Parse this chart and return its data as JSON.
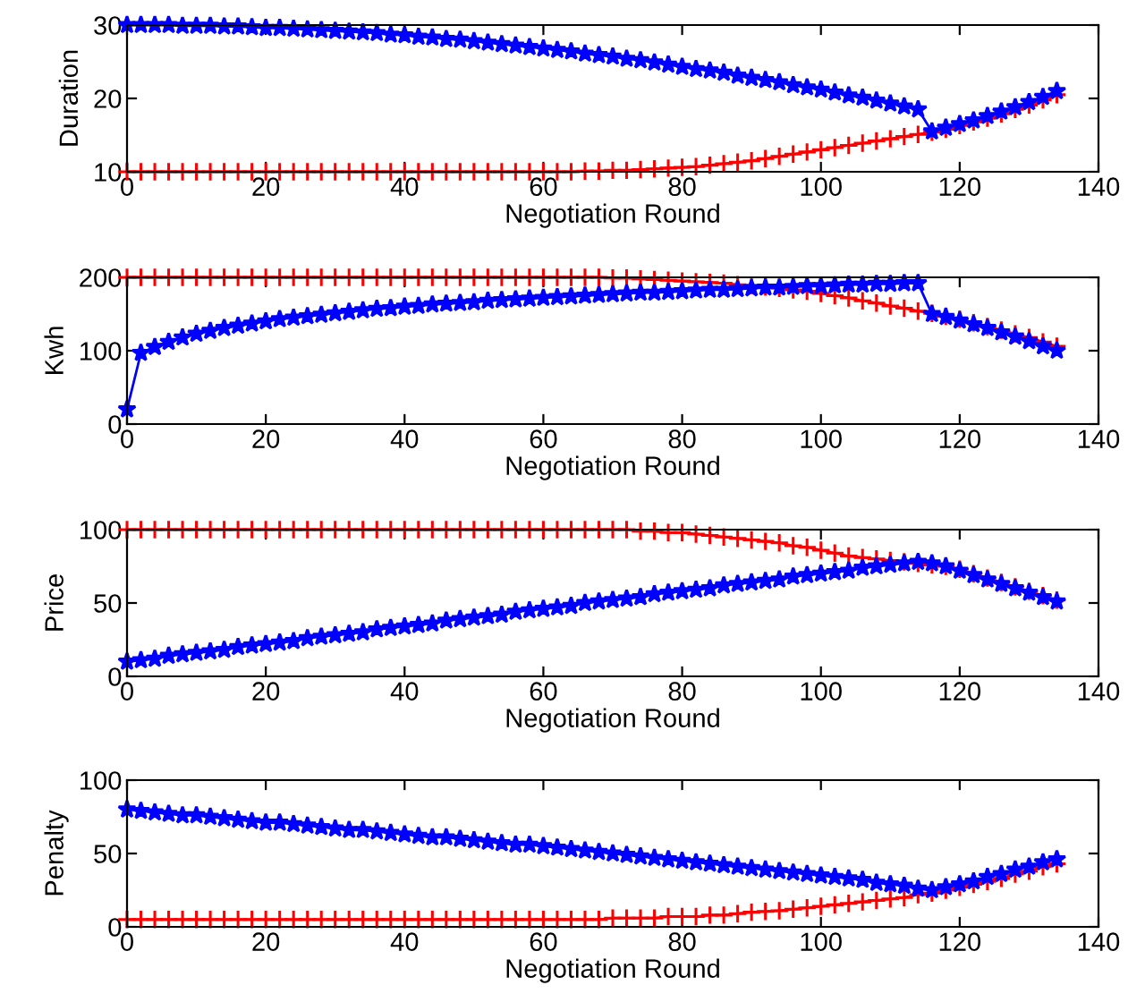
{
  "chart_data": [
    {
      "type": "line",
      "xlabel": "Negotiation Round",
      "ylabel": "Duration",
      "xlim": [
        0,
        140
      ],
      "xticks": [
        0,
        20,
        40,
        60,
        80,
        100,
        120,
        140
      ],
      "ylim": [
        10,
        30
      ],
      "yticks": [
        10,
        20,
        30
      ],
      "grid": false,
      "legend": false,
      "x": [
        0,
        2,
        4,
        6,
        8,
        10,
        12,
        14,
        16,
        18,
        20,
        22,
        24,
        26,
        28,
        30,
        32,
        34,
        36,
        38,
        40,
        42,
        44,
        46,
        48,
        50,
        52,
        54,
        56,
        58,
        60,
        62,
        64,
        66,
        68,
        70,
        72,
        74,
        76,
        78,
        80,
        82,
        84,
        86,
        88,
        90,
        92,
        94,
        96,
        98,
        100,
        102,
        104,
        106,
        108,
        110,
        112,
        114,
        116,
        118,
        120,
        122,
        124,
        126,
        128,
        130,
        132,
        134
      ],
      "series": [
        {
          "color": "#ff0000",
          "marker": "cross",
          "values": [
            10,
            10,
            10,
            10,
            10,
            10,
            10,
            10,
            10,
            10,
            10,
            10,
            10,
            10,
            10,
            10,
            10,
            10,
            10,
            10,
            10,
            10,
            10,
            10,
            10,
            10,
            10,
            10,
            10,
            10,
            10,
            10,
            10,
            10.1,
            10.1,
            10.2,
            10.2,
            10.3,
            10.4,
            10.5,
            10.6,
            10.7,
            10.9,
            11.1,
            11.3,
            11.5,
            11.8,
            12.1,
            12.4,
            12.7,
            13.0,
            13.3,
            13.6,
            13.9,
            14.2,
            14.5,
            14.8,
            15.1,
            15.4,
            15.8,
            16.3,
            16.8,
            17.3,
            17.9,
            18.5,
            19.1,
            19.8,
            20.5
          ]
        },
        {
          "color": "#0000ff",
          "marker": "star",
          "values": [
            30.0,
            30.0,
            30.0,
            30.0,
            29.9,
            29.9,
            29.9,
            29.8,
            29.8,
            29.7,
            29.6,
            29.6,
            29.5,
            29.4,
            29.3,
            29.2,
            29.1,
            29.0,
            28.9,
            28.7,
            28.6,
            28.4,
            28.3,
            28.1,
            28.0,
            27.8,
            27.6,
            27.4,
            27.2,
            27.0,
            26.8,
            26.6,
            26.4,
            26.1,
            25.9,
            25.7,
            25.4,
            25.2,
            24.9,
            24.6,
            24.3,
            24.0,
            23.8,
            23.5,
            23.1,
            22.8,
            22.5,
            22.2,
            21.8,
            21.5,
            21.2,
            20.8,
            20.4,
            20.1,
            19.7,
            19.3,
            18.9,
            18.5,
            15.5,
            16.0,
            16.5,
            17.0,
            17.6,
            18.2,
            18.8,
            19.5,
            20.2,
            21.0
          ]
        }
      ]
    },
    {
      "type": "line",
      "xlabel": "Negotiation Round",
      "ylabel": "Kwh",
      "xlim": [
        0,
        140
      ],
      "xticks": [
        0,
        20,
        40,
        60,
        80,
        100,
        120,
        140
      ],
      "ylim": [
        0,
        200
      ],
      "yticks": [
        0,
        100,
        200
      ],
      "grid": false,
      "legend": false,
      "x": [
        0,
        2,
        4,
        6,
        8,
        10,
        12,
        14,
        16,
        18,
        20,
        22,
        24,
        26,
        28,
        30,
        32,
        34,
        36,
        38,
        40,
        42,
        44,
        46,
        48,
        50,
        52,
        54,
        56,
        58,
        60,
        62,
        64,
        66,
        68,
        70,
        72,
        74,
        76,
        78,
        80,
        82,
        84,
        86,
        88,
        90,
        92,
        94,
        96,
        98,
        100,
        102,
        104,
        106,
        108,
        110,
        112,
        114,
        116,
        118,
        120,
        122,
        124,
        126,
        128,
        130,
        132,
        134
      ],
      "series": [
        {
          "color": "#ff0000",
          "marker": "cross",
          "values": [
            200,
            200,
            200,
            200,
            200,
            200,
            200,
            200,
            200,
            200,
            200,
            200,
            200,
            200,
            200,
            200,
            200,
            200,
            200,
            200,
            200,
            200,
            200,
            200,
            200,
            200,
            200,
            200,
            200,
            200,
            200,
            200,
            200,
            200,
            200,
            199,
            199,
            198,
            197,
            196,
            195,
            194,
            193,
            192,
            190,
            189,
            187,
            185,
            183,
            181,
            178,
            175,
            172,
            168,
            165,
            161,
            158,
            154,
            151,
            147,
            143,
            138,
            133,
            128,
            123,
            118,
            112,
            106
          ]
        },
        {
          "color": "#0000ff",
          "marker": "star",
          "values": [
            20,
            97,
            105,
            112,
            118,
            123,
            127,
            131,
            134,
            137,
            140,
            143,
            145,
            147,
            149,
            151,
            153,
            155,
            157,
            158,
            160,
            161,
            163,
            164,
            165,
            166,
            168,
            169,
            170,
            171,
            172,
            173,
            174,
            175,
            176,
            177,
            178,
            179,
            179,
            180,
            181,
            182,
            183,
            183,
            184,
            185,
            186,
            186,
            187,
            188,
            188,
            189,
            190,
            190,
            191,
            191,
            192,
            192,
            150,
            146,
            141,
            136,
            131,
            125,
            119,
            113,
            106,
            100
          ]
        }
      ]
    },
    {
      "type": "line",
      "xlabel": "Negotiation Round",
      "ylabel": "Price",
      "xlim": [
        0,
        140
      ],
      "xticks": [
        0,
        20,
        40,
        60,
        80,
        100,
        120,
        140
      ],
      "ylim": [
        0,
        100
      ],
      "yticks": [
        0,
        50,
        100
      ],
      "grid": false,
      "legend": false,
      "x": [
        0,
        2,
        4,
        6,
        8,
        10,
        12,
        14,
        16,
        18,
        20,
        22,
        24,
        26,
        28,
        30,
        32,
        34,
        36,
        38,
        40,
        42,
        44,
        46,
        48,
        50,
        52,
        54,
        56,
        58,
        60,
        62,
        64,
        66,
        68,
        70,
        72,
        74,
        76,
        78,
        80,
        82,
        84,
        86,
        88,
        90,
        92,
        94,
        96,
        98,
        100,
        102,
        104,
        106,
        108,
        110,
        112,
        114,
        116,
        118,
        120,
        122,
        124,
        126,
        128,
        130,
        132,
        134
      ],
      "series": [
        {
          "color": "#ff0000",
          "marker": "cross",
          "values": [
            100,
            100,
            100,
            100,
            100,
            100,
            100,
            100,
            100,
            100,
            100,
            100,
            100,
            100,
            100,
            100,
            100,
            100,
            100,
            100,
            100,
            100,
            100,
            100,
            100,
            100,
            100,
            100,
            100,
            100,
            100,
            100,
            100,
            100,
            100,
            100,
            100,
            99,
            99,
            98,
            98,
            97,
            96,
            95,
            94,
            93,
            92,
            91,
            89,
            88,
            86,
            84,
            82,
            81,
            80,
            79,
            78,
            77,
            76,
            75,
            73,
            70,
            67,
            64,
            61,
            58,
            55,
            52
          ]
        },
        {
          "color": "#0000ff",
          "marker": "star",
          "values": [
            10,
            11,
            12,
            14,
            15,
            16,
            17,
            18,
            20,
            21,
            22,
            23,
            24,
            26,
            27,
            28,
            29,
            30,
            32,
            33,
            34,
            35,
            36,
            38,
            39,
            40,
            41,
            42,
            44,
            45,
            46,
            47,
            48,
            50,
            51,
            52,
            53,
            54,
            56,
            57,
            58,
            59,
            60,
            62,
            63,
            64,
            65,
            66,
            68,
            69,
            70,
            71,
            72,
            74,
            75,
            76,
            77,
            78,
            77,
            75,
            72,
            69,
            66,
            63,
            60,
            57,
            54,
            51
          ]
        }
      ]
    },
    {
      "type": "line",
      "xlabel": "Negotiation Round",
      "ylabel": "Penalty",
      "xlim": [
        0,
        140
      ],
      "xticks": [
        0,
        20,
        40,
        60,
        80,
        100,
        120,
        140
      ],
      "ylim": [
        0,
        100
      ],
      "yticks": [
        0,
        50,
        100
      ],
      "grid": false,
      "legend": false,
      "x": [
        0,
        2,
        4,
        6,
        8,
        10,
        12,
        14,
        16,
        18,
        20,
        22,
        24,
        26,
        28,
        30,
        32,
        34,
        36,
        38,
        40,
        42,
        44,
        46,
        48,
        50,
        52,
        54,
        56,
        58,
        60,
        62,
        64,
        66,
        68,
        70,
        72,
        74,
        76,
        78,
        80,
        82,
        84,
        86,
        88,
        90,
        92,
        94,
        96,
        98,
        100,
        102,
        104,
        106,
        108,
        110,
        112,
        114,
        116,
        118,
        120,
        122,
        124,
        126,
        128,
        130,
        132,
        134
      ],
      "series": [
        {
          "color": "#ff0000",
          "marker": "cross",
          "values": [
            5,
            5,
            5,
            5,
            5,
            5,
            5,
            5,
            5,
            5,
            5,
            5,
            5,
            5,
            5,
            5,
            5,
            5,
            5,
            5,
            5,
            5,
            5,
            5,
            5,
            5,
            5,
            5,
            5,
            5,
            5,
            5,
            5,
            5,
            5,
            6,
            6,
            6,
            6,
            7,
            7,
            7,
            8,
            8,
            9,
            10,
            10.5,
            11,
            12,
            13,
            14,
            15,
            16,
            17,
            18,
            19,
            20,
            22,
            23,
            25,
            27,
            29,
            31,
            33,
            36,
            38,
            41,
            43
          ]
        },
        {
          "color": "#0000ff",
          "marker": "star",
          "values": [
            80,
            79,
            78,
            77,
            76,
            76,
            75,
            74,
            73,
            72,
            71,
            71,
            70,
            69,
            68,
            67,
            66,
            66,
            65,
            64,
            63,
            62,
            61,
            61,
            60,
            59,
            58,
            57,
            56,
            56,
            55,
            54,
            53,
            52,
            51,
            50,
            49,
            48,
            47,
            46,
            45,
            44,
            43,
            42,
            41,
            40,
            39,
            38,
            37,
            36,
            35,
            34,
            33,
            32,
            30,
            29,
            28,
            26,
            25,
            27,
            29,
            31,
            34,
            36,
            39,
            41,
            44,
            46
          ]
        }
      ]
    }
  ]
}
